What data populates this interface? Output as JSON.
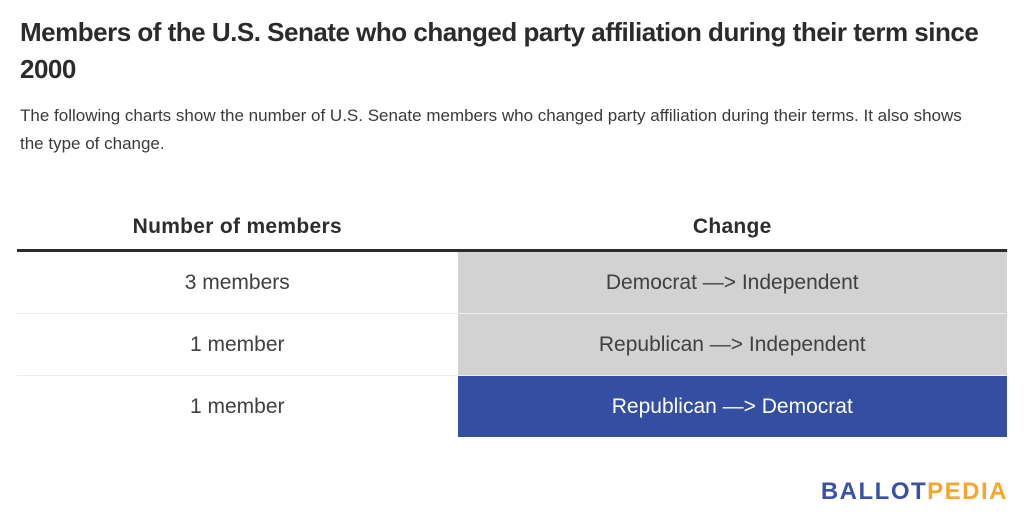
{
  "header": {
    "title": "Members of the U.S. Senate who changed party affiliation during their term since 2000",
    "subtitle": "The following charts show the number of U.S. Senate members who changed party affiliation during their terms. It also shows the type of change."
  },
  "table": {
    "columns": [
      "Number of members",
      "Change"
    ],
    "rows": [
      {
        "members": "3 members",
        "change": "Democrat —> Independent",
        "highlight": "gray"
      },
      {
        "members": "1 member",
        "change": "Republican —> Independent",
        "highlight": "gray"
      },
      {
        "members": "1 member",
        "change": "Republican —> Democrat",
        "highlight": "blue"
      }
    ]
  },
  "chart_data": {
    "type": "table",
    "title": "Members of the U.S. Senate who changed party affiliation during their term since 2000",
    "columns": [
      "Number of members",
      "Change"
    ],
    "categories": [
      "Democrat —> Independent",
      "Republican —> Independent",
      "Republican —> Democrat"
    ],
    "values": [
      3,
      1,
      1
    ],
    "rows": [
      [
        "3 members",
        "Democrat —> Independent"
      ],
      [
        "1 member",
        "Republican —> Independent"
      ],
      [
        "1 member",
        "Republican —> Democrat"
      ]
    ],
    "highlight_colors": [
      "#d2d2d2",
      "#d2d2d2",
      "#344fa1"
    ]
  },
  "logo": {
    "part1": "BALLOT",
    "part2": "PEDIA"
  },
  "colors": {
    "gray_cell": "#d2d2d2",
    "blue_cell": "#344fa1",
    "header_rule": "#2b2b2b",
    "logo_blue": "#3b51a5",
    "logo_orange": "#f5a62b",
    "text_dark": "#2b2b2b"
  }
}
